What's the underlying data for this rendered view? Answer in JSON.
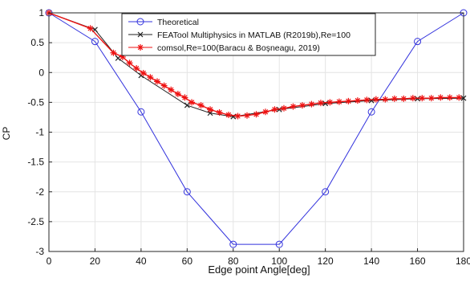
{
  "chart_data": {
    "type": "line",
    "xlabel": "Edge point Angle[deg]",
    "ylabel": "CP",
    "xlim": [
      0,
      180
    ],
    "ylim": [
      -3,
      1
    ],
    "xticks": [
      0,
      20,
      40,
      60,
      80,
      100,
      120,
      140,
      160,
      180
    ],
    "yticks": [
      1,
      0.5,
      0,
      -0.5,
      -1,
      -1.5,
      -2,
      -2.5,
      -3
    ],
    "grid": true,
    "legend_position": "top-right",
    "series": [
      {
        "name": "Theoretical",
        "color": "#3333dd",
        "marker": "circle",
        "x": [
          0,
          20,
          40,
          60,
          80,
          100,
          120,
          140,
          160,
          180
        ],
        "y": [
          1,
          0.52,
          -0.66,
          -2.0,
          -2.88,
          -2.88,
          -2.0,
          -0.66,
          0.52,
          1
        ]
      },
      {
        "name": "FEATool Multiphysics in MATLAB (R2019b),Re=100",
        "color": "#222222",
        "marker": "x",
        "x": [
          0,
          20,
          30,
          40,
          60,
          70,
          80,
          100,
          120,
          140,
          160,
          180
        ],
        "y": [
          1,
          0.72,
          0.24,
          -0.05,
          -0.55,
          -0.68,
          -0.74,
          -0.62,
          -0.52,
          -0.47,
          -0.44,
          -0.43
        ]
      },
      {
        "name": "comsol,Re=100(Baracu & Boşneagu, 2019)",
        "color": "#ee1111",
        "marker": "star",
        "x": [
          0,
          18,
          28,
          32,
          35,
          38,
          41,
          44,
          47,
          50,
          53,
          56,
          59,
          62,
          66,
          70,
          74,
          78,
          82,
          86,
          90,
          94,
          98,
          102,
          106,
          110,
          114,
          118,
          122,
          126,
          130,
          134,
          138,
          142,
          146,
          150,
          154,
          158,
          162,
          166,
          170,
          174,
          178
        ],
        "y": [
          1,
          0.74,
          0.33,
          0.26,
          0.16,
          0.07,
          -0.01,
          -0.08,
          -0.15,
          -0.22,
          -0.29,
          -0.36,
          -0.42,
          -0.5,
          -0.55,
          -0.62,
          -0.67,
          -0.71,
          -0.73,
          -0.72,
          -0.7,
          -0.66,
          -0.62,
          -0.6,
          -0.57,
          -0.55,
          -0.53,
          -0.51,
          -0.5,
          -0.49,
          -0.48,
          -0.47,
          -0.46,
          -0.45,
          -0.45,
          -0.44,
          -0.44,
          -0.43,
          -0.43,
          -0.43,
          -0.42,
          -0.42,
          -0.42
        ]
      }
    ]
  }
}
